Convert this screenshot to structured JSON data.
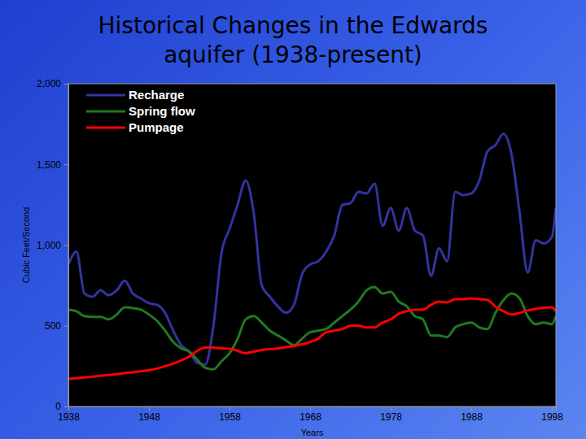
{
  "chart_data": {
    "type": "line",
    "title": "Historical Changes in the Edwards aquifer (1938-present)",
    "x_label": "Years",
    "y_label": "Cubic Feet/Second",
    "x": [
      1938,
      1939,
      1940,
      1941,
      1942,
      1943,
      1944,
      1945,
      1946,
      1947,
      1948,
      1949,
      1950,
      1951,
      1952,
      1953,
      1954,
      1955,
      1956,
      1957,
      1958,
      1959,
      1960,
      1961,
      1962,
      1963,
      1964,
      1965,
      1966,
      1967,
      1968,
      1969,
      1970,
      1971,
      1972,
      1973,
      1974,
      1975,
      1976,
      1977,
      1978,
      1979,
      1980,
      1981,
      1982,
      1983,
      1984,
      1985,
      1986,
      1987,
      1988,
      1989,
      1990,
      1991,
      1992,
      1993,
      1994,
      1995,
      1996,
      1997,
      1998,
      1998.5
    ],
    "series": [
      {
        "name": "Recharge",
        "color": "#3333a0",
        "values": [
          880,
          960,
          700,
          680,
          720,
          690,
          720,
          780,
          700,
          670,
          640,
          630,
          580,
          470,
          380,
          340,
          270,
          260,
          500,
          950,
          1100,
          1250,
          1400,
          1200,
          750,
          680,
          620,
          580,
          630,
          820,
          880,
          900,
          960,
          1060,
          1250,
          1260,
          1330,
          1320,
          1380,
          1120,
          1230,
          1090,
          1230,
          1090,
          1060,
          810,
          980,
          900,
          1330,
          1310,
          1320,
          1400,
          1580,
          1620,
          1690,
          1560,
          1200,
          830,
          1030,
          1010,
          1050,
          1230
        ]
      },
      {
        "name": "Spring flow",
        "color": "#1f7a1f",
        "values": [
          600,
          590,
          560,
          555,
          555,
          540,
          570,
          615,
          610,
          600,
          570,
          530,
          470,
          400,
          360,
          340,
          290,
          240,
          230,
          280,
          330,
          420,
          540,
          560,
          520,
          470,
          440,
          410,
          380,
          420,
          460,
          470,
          480,
          520,
          560,
          600,
          650,
          720,
          740,
          700,
          710,
          650,
          620,
          560,
          540,
          440,
          440,
          430,
          490,
          510,
          520,
          490,
          480,
          580,
          660,
          700,
          670,
          560,
          510,
          520,
          510,
          560
        ]
      },
      {
        "name": "Pumpage",
        "color": "#ff0000",
        "values": [
          170,
          175,
          180,
          185,
          190,
          195,
          200,
          207,
          212,
          218,
          225,
          235,
          250,
          265,
          285,
          310,
          345,
          365,
          365,
          360,
          358,
          345,
          330,
          340,
          350,
          355,
          360,
          368,
          375,
          385,
          400,
          420,
          460,
          470,
          480,
          500,
          500,
          490,
          490,
          520,
          540,
          575,
          590,
          600,
          600,
          630,
          650,
          645,
          665,
          665,
          670,
          665,
          660,
          620,
          590,
          570,
          580,
          595,
          605,
          612,
          615,
          590
        ]
      }
    ],
    "xlim": [
      1938,
      1998.5
    ],
    "xticks": [
      1938,
      1948,
      1958,
      1968,
      1978,
      1988,
      1998
    ],
    "ylim": [
      0,
      2000
    ],
    "yticks": [
      0,
      500,
      {
        "value": 1000,
        "label": "1,000"
      },
      {
        "value": 1500,
        "label": "1,500"
      },
      {
        "value": 2000,
        "label": "2,000"
      }
    ],
    "grid": false,
    "legend": "upper left"
  }
}
